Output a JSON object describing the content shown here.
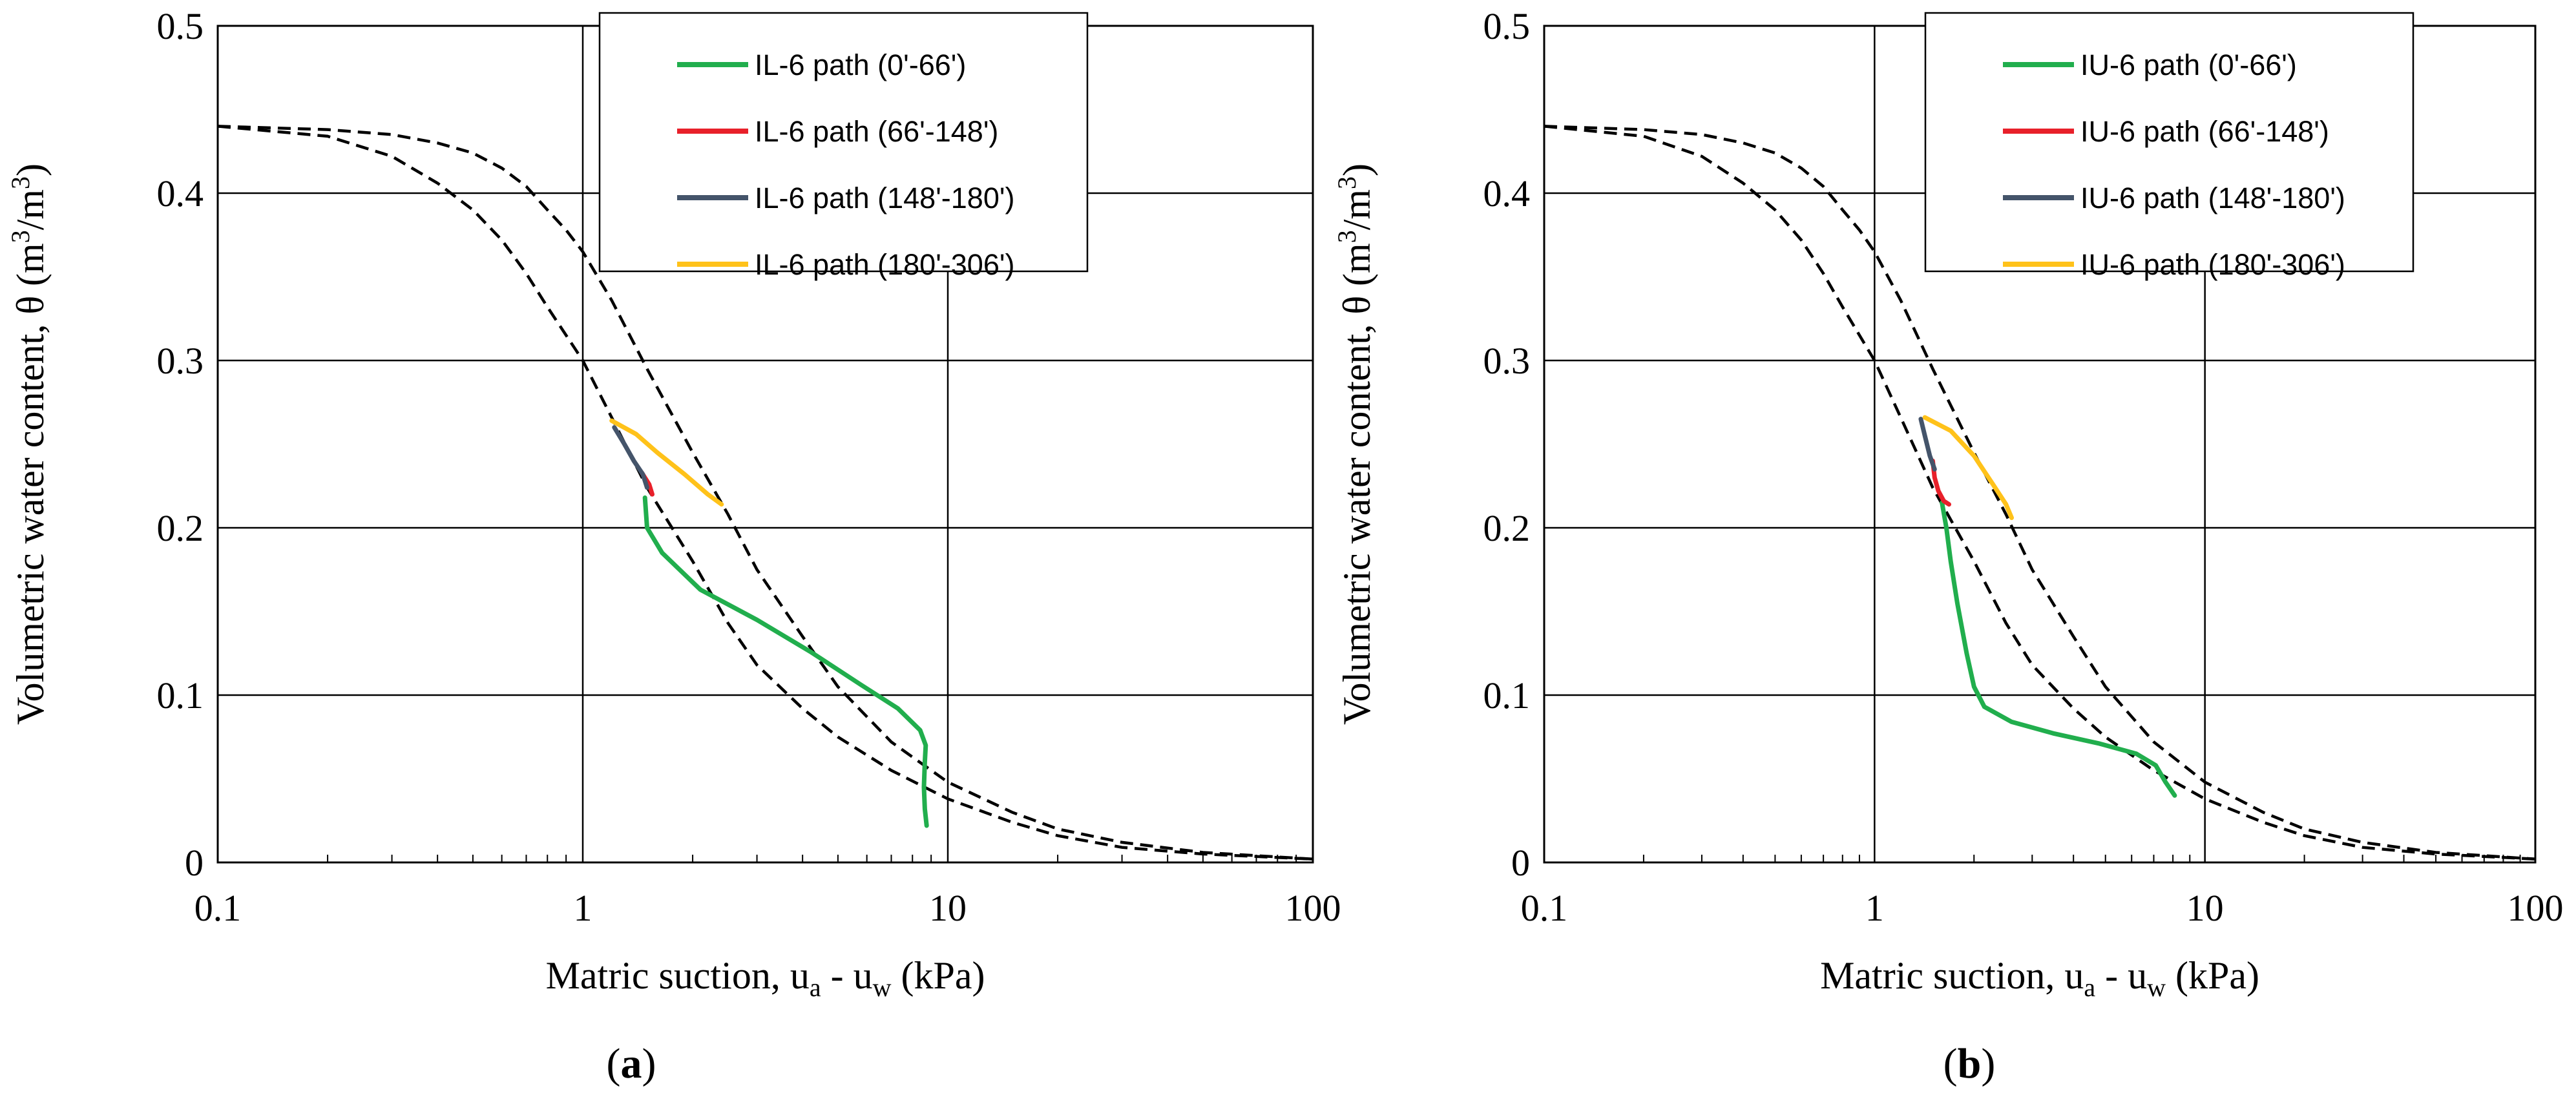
{
  "chart_data": [
    {
      "type": "line",
      "panel_label": "a",
      "xscale": "log",
      "xlim": [
        0.1,
        100
      ],
      "ylim": [
        0,
        0.5
      ],
      "grid": true,
      "legend_position": "top-right",
      "xlabel": {
        "main": "Matric suction, u",
        "sub1": "a",
        "mid": " - u",
        "sub2": "w",
        "tail": " (kPa)"
      },
      "ylabel": {
        "main": "Volumetric water content, θ (m",
        "sup1": "3",
        "mid": "/m",
        "sup2": "3",
        "tail": ")"
      },
      "x_ticks": [
        {
          "v": 0.1,
          "label": "0.1"
        },
        {
          "v": 1,
          "label": "1"
        },
        {
          "v": 10,
          "label": "10"
        },
        {
          "v": 100,
          "label": "100"
        }
      ],
      "y_ticks": [
        {
          "v": 0,
          "label": "0"
        },
        {
          "v": 0.1,
          "label": "0.1"
        },
        {
          "v": 0.2,
          "label": "0.2"
        },
        {
          "v": 0.3,
          "label": "0.3"
        },
        {
          "v": 0.4,
          "label": "0.4"
        },
        {
          "v": 0.5,
          "label": "0.5"
        }
      ],
      "reference_curves": [
        {
          "name": "wetting-curve",
          "color": "#000000",
          "dash": true,
          "points": [
            [
              0.1,
              0.44
            ],
            [
              0.2,
              0.434
            ],
            [
              0.3,
              0.422
            ],
            [
              0.4,
              0.406
            ],
            [
              0.5,
              0.39
            ],
            [
              0.6,
              0.372
            ],
            [
              0.7,
              0.352
            ],
            [
              0.8,
              0.332
            ],
            [
              1,
              0.3
            ],
            [
              1.2,
              0.266
            ],
            [
              1.5,
              0.224
            ],
            [
              2,
              0.18
            ],
            [
              2.5,
              0.143
            ],
            [
              3,
              0.118
            ],
            [
              4,
              0.092
            ],
            [
              5,
              0.075
            ],
            [
              7,
              0.055
            ],
            [
              10,
              0.038
            ],
            [
              15,
              0.024
            ],
            [
              20,
              0.016
            ],
            [
              30,
              0.009
            ],
            [
              50,
              0.005
            ],
            [
              100,
              0.002
            ]
          ]
        },
        {
          "name": "drying-curve",
          "color": "#000000",
          "dash": true,
          "points": [
            [
              0.1,
              0.44
            ],
            [
              0.2,
              0.438
            ],
            [
              0.3,
              0.435
            ],
            [
              0.4,
              0.43
            ],
            [
              0.5,
              0.424
            ],
            [
              0.6,
              0.415
            ],
            [
              0.7,
              0.404
            ],
            [
              0.8,
              0.39
            ],
            [
              0.9,
              0.378
            ],
            [
              1,
              0.365
            ],
            [
              1.2,
              0.336
            ],
            [
              1.5,
              0.295
            ],
            [
              2,
              0.245
            ],
            [
              2.5,
              0.208
            ],
            [
              3,
              0.175
            ],
            [
              4,
              0.135
            ],
            [
              5,
              0.105
            ],
            [
              7,
              0.072
            ],
            [
              10,
              0.048
            ],
            [
              15,
              0.03
            ],
            [
              20,
              0.02
            ],
            [
              30,
              0.012
            ],
            [
              50,
              0.006
            ],
            [
              100,
              0.002
            ]
          ]
        }
      ],
      "series": [
        {
          "name": "IL-6 path (0'-66')",
          "color": "#21AE4D",
          "points": [
            [
              1.48,
              0.218
            ],
            [
              1.5,
              0.2
            ],
            [
              1.65,
              0.185
            ],
            [
              2.1,
              0.163
            ],
            [
              3,
              0.145
            ],
            [
              4.2,
              0.126
            ],
            [
              5.8,
              0.106
            ],
            [
              7.3,
              0.092
            ],
            [
              8.4,
              0.079
            ],
            [
              8.7,
              0.07
            ],
            [
              8.65,
              0.06
            ],
            [
              8.6,
              0.045
            ],
            [
              8.65,
              0.032
            ],
            [
              8.75,
              0.022
            ]
          ]
        },
        {
          "name": "IL-6 path (66'-148')",
          "color": "#E8202A",
          "points": [
            [
              1.45,
              0.233
            ],
            [
              1.52,
              0.226
            ],
            [
              1.55,
              0.22
            ]
          ]
        },
        {
          "name": "IL-6 path (148'-180')",
          "color": "#44546A",
          "points": [
            [
              1.22,
              0.26
            ],
            [
              1.3,
              0.25
            ],
            [
              1.38,
              0.24
            ],
            [
              1.46,
              0.232
            ],
            [
              1.5,
              0.224
            ]
          ]
        },
        {
          "name": "IL-6 path (180'-306')",
          "color": "#FFC21A",
          "points": [
            [
              1.2,
              0.264
            ],
            [
              1.4,
              0.256
            ],
            [
              1.6,
              0.245
            ],
            [
              1.9,
              0.232
            ],
            [
              2.2,
              0.22
            ],
            [
              2.4,
              0.214
            ]
          ]
        }
      ]
    },
    {
      "type": "line",
      "panel_label": "b",
      "xscale": "log",
      "xlim": [
        0.1,
        100
      ],
      "ylim": [
        0,
        0.5
      ],
      "grid": true,
      "legend_position": "top-right",
      "xlabel": {
        "main": "Matric suction, u",
        "sub1": "a",
        "mid": " - u",
        "sub2": "w",
        "tail": " (kPa)"
      },
      "ylabel": {
        "main": "Volumetric water content, θ (m",
        "sup1": "3",
        "mid": "/m",
        "sup2": "3",
        "tail": ")"
      },
      "x_ticks": [
        {
          "v": 0.1,
          "label": "0.1"
        },
        {
          "v": 1,
          "label": "1"
        },
        {
          "v": 10,
          "label": "10"
        },
        {
          "v": 100,
          "label": "100"
        }
      ],
      "y_ticks": [
        {
          "v": 0,
          "label": "0"
        },
        {
          "v": 0.1,
          "label": "0.1"
        },
        {
          "v": 0.2,
          "label": "0.2"
        },
        {
          "v": 0.3,
          "label": "0.3"
        },
        {
          "v": 0.4,
          "label": "0.4"
        },
        {
          "v": 0.5,
          "label": "0.5"
        }
      ],
      "reference_curves": [
        {
          "name": "wetting-curve",
          "color": "#000000",
          "dash": true,
          "points": [
            [
              0.1,
              0.44
            ],
            [
              0.2,
              0.434
            ],
            [
              0.3,
              0.422
            ],
            [
              0.4,
              0.406
            ],
            [
              0.5,
              0.39
            ],
            [
              0.6,
              0.372
            ],
            [
              0.7,
              0.352
            ],
            [
              0.8,
              0.332
            ],
            [
              1,
              0.3
            ],
            [
              1.2,
              0.266
            ],
            [
              1.5,
              0.224
            ],
            [
              2,
              0.18
            ],
            [
              2.5,
              0.143
            ],
            [
              3,
              0.118
            ],
            [
              4,
              0.092
            ],
            [
              5,
              0.075
            ],
            [
              7,
              0.055
            ],
            [
              10,
              0.038
            ],
            [
              15,
              0.024
            ],
            [
              20,
              0.016
            ],
            [
              30,
              0.009
            ],
            [
              50,
              0.005
            ],
            [
              100,
              0.002
            ]
          ]
        },
        {
          "name": "drying-curve",
          "color": "#000000",
          "dash": true,
          "points": [
            [
              0.1,
              0.44
            ],
            [
              0.2,
              0.438
            ],
            [
              0.3,
              0.435
            ],
            [
              0.4,
              0.43
            ],
            [
              0.5,
              0.424
            ],
            [
              0.6,
              0.415
            ],
            [
              0.7,
              0.404
            ],
            [
              0.8,
              0.39
            ],
            [
              0.9,
              0.378
            ],
            [
              1,
              0.365
            ],
            [
              1.2,
              0.336
            ],
            [
              1.5,
              0.295
            ],
            [
              2,
              0.245
            ],
            [
              2.5,
              0.208
            ],
            [
              3,
              0.175
            ],
            [
              4,
              0.135
            ],
            [
              5,
              0.105
            ],
            [
              7,
              0.072
            ],
            [
              10,
              0.048
            ],
            [
              15,
              0.03
            ],
            [
              20,
              0.02
            ],
            [
              30,
              0.012
            ],
            [
              50,
              0.006
            ],
            [
              100,
              0.002
            ]
          ]
        }
      ],
      "series": [
        {
          "name": "IU-6 path (0'-66')",
          "color": "#21AE4D",
          "points": [
            [
              1.6,
              0.215
            ],
            [
              1.65,
              0.2
            ],
            [
              1.7,
              0.18
            ],
            [
              1.78,
              0.155
            ],
            [
              1.9,
              0.125
            ],
            [
              2,
              0.105
            ],
            [
              2.15,
              0.093
            ],
            [
              2.6,
              0.084
            ],
            [
              3.5,
              0.077
            ],
            [
              4.8,
              0.071
            ],
            [
              6.2,
              0.065
            ],
            [
              7.1,
              0.058
            ],
            [
              7.6,
              0.048
            ],
            [
              8.1,
              0.04
            ]
          ]
        },
        {
          "name": "IU-6 path (66'-148')",
          "color": "#E8202A",
          "points": [
            [
              1.5,
              0.24
            ],
            [
              1.52,
              0.23
            ],
            [
              1.56,
              0.222
            ],
            [
              1.62,
              0.216
            ],
            [
              1.68,
              0.214
            ]
          ]
        },
        {
          "name": "IU-6 path (148'-180')",
          "color": "#44546A",
          "points": [
            [
              1.38,
              0.265
            ],
            [
              1.42,
              0.255
            ],
            [
              1.47,
              0.243
            ],
            [
              1.52,
              0.235
            ]
          ]
        },
        {
          "name": "IU-6 path (180'-306')",
          "color": "#FFC21A",
          "points": [
            [
              1.42,
              0.266
            ],
            [
              1.7,
              0.258
            ],
            [
              2,
              0.243
            ],
            [
              2.3,
              0.225
            ],
            [
              2.5,
              0.214
            ],
            [
              2.6,
              0.206
            ]
          ]
        }
      ]
    }
  ]
}
